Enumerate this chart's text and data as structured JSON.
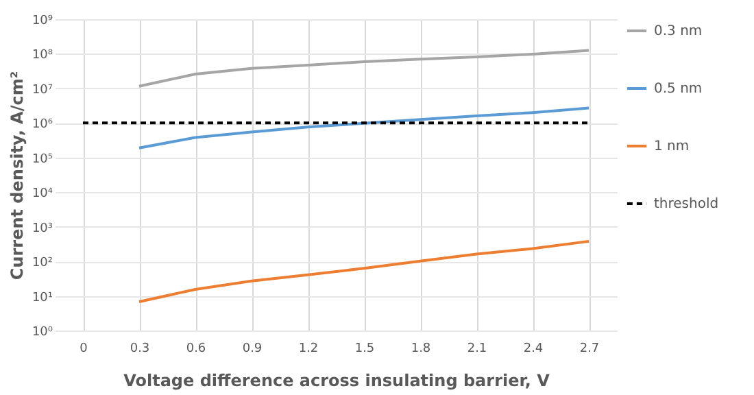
{
  "chart_data": {
    "type": "line",
    "xlabel": "Voltage difference across insulating barrier, V",
    "ylabel": "Current density, A/cm²",
    "categories": [
      "0",
      "0.3",
      "0.6",
      "0.9",
      "1.2",
      "1.5",
      "1.8",
      "2.1",
      "2.4",
      "2.7"
    ],
    "series": [
      {
        "name": "0.3 nm",
        "color": "#a5a5a5",
        "line_style": "solid",
        "values": [
          null,
          11500000.0,
          26000000.0,
          38000000.0,
          47000000.0,
          59000000.0,
          70000000.0,
          81000000.0,
          98000000.0,
          125000000.0
        ]
      },
      {
        "name": "0.5 nm",
        "color": "#5b9bd5",
        "line_style": "solid",
        "values": [
          null,
          190000.0,
          380000.0,
          550000.0,
          760000.0,
          980000.0,
          1260000.0,
          1600000.0,
          2000000.0,
          2700000.0
        ]
      },
      {
        "name": "1 nm",
        "color": "#ed7d31",
        "line_style": "solid",
        "values": [
          null,
          6.8,
          15.5,
          27,
          41,
          63,
          102,
          162,
          234,
          380
        ]
      },
      {
        "name": "threshold",
        "color": "#000000",
        "line_style": "dashed",
        "values": [
          1000000.0,
          1000000.0,
          1000000.0,
          1000000.0,
          1000000.0,
          1000000.0,
          1000000.0,
          1000000.0,
          1000000.0,
          1000000.0
        ]
      }
    ],
    "log": "y",
    "ylim": [
      1,
      1000000000.0
    ],
    "yticks": [
      {
        "value": 1,
        "label": "10⁰"
      },
      {
        "value": 10,
        "label": "10¹"
      },
      {
        "value": 100,
        "label": "10²"
      },
      {
        "value": 1000,
        "label": "10³"
      },
      {
        "value": 10000,
        "label": "10⁴"
      },
      {
        "value": 100000,
        "label": "10⁵"
      },
      {
        "value": 1000000,
        "label": "10⁶"
      },
      {
        "value": 10000000,
        "label": "10⁷"
      },
      {
        "value": 100000000,
        "label": "10⁸"
      },
      {
        "value": 1000000000,
        "label": "10⁹"
      }
    ],
    "grid": true,
    "legend": "right",
    "marker": "none"
  }
}
